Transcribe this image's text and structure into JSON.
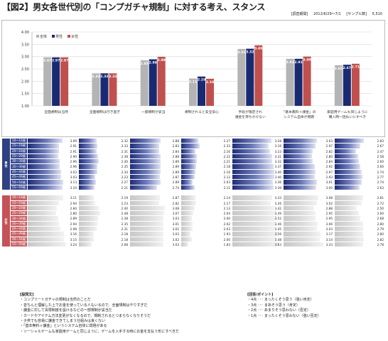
{
  "header": {
    "title": "【図2】男女各世代別の「コンプガチャ規制」に対する考え、スタンス",
    "period_label": "[調査期間]",
    "period": "2012/6/29〜7/1",
    "sample_label": "[サンプル数]",
    "sample": "5,510"
  },
  "colors": {
    "all": "#b4b4b4",
    "male": "#1a2a72",
    "female": "#c0504d"
  },
  "chart_data": {
    "type": "bar",
    "categories": [
      [
        "全面規制は当然"
      ],
      [
        "全面規制は行き過ぎ"
      ],
      [
        "一部規制が妥当"
      ],
      [
        "規制されると安全安心"
      ],
      [
        "手段が限定され",
        "課金を持ちかけない"
      ],
      [
        "「基本無料＋課金」の",
        "システム自体が問題"
      ],
      [
        "家庭用ゲームも同じように",
        "購入時一括払いにすべき"
      ]
    ],
    "series": [
      {
        "name": "全体",
        "values": [
          2.97,
          2.32,
          2.85,
          2.11,
          3.31,
          2.91,
          2.65
        ]
      },
      {
        "name": "男性",
        "values": [
          2.97,
          2.32,
          2.89,
          2.19,
          3.32,
          2.91,
          2.67
        ]
      },
      {
        "name": "女性",
        "values": [
          2.97,
          2.32,
          2.99,
          2.1,
          3.46,
          3.0,
          2.71
        ]
      }
    ],
    "value_labels": [
      [
        "2.97",
        "2.97",
        "2.97"
      ],
      [
        "2.32",
        "2.32",
        "2.32"
      ],
      [
        "2.85",
        "2.89",
        "2.99"
      ],
      [
        "2.11",
        "2.19",
        "2.10"
      ],
      [
        "3.31",
        "3.32",
        "3.46"
      ],
      [
        "2.91",
        "2.91",
        "3.00"
      ],
      [
        "2.65",
        "2.67",
        "2.71"
      ]
    ],
    "ylim": [
      1.0,
      4.0
    ],
    "yticks": [
      "1.00",
      "1.50",
      "2.00",
      "2.50",
      "3.00",
      "3.50",
      "4.00"
    ],
    "legend_position": "top-left",
    "grid": true
  },
  "table": {
    "groups": [
      {
        "label": "男性",
        "rows": [
          {
            "age": "10〜14歳",
            "values": [
              "3.09",
              "2.32",
              "2.88",
              "2.27",
              "3.28",
              "3.03",
              "2.83"
            ]
          },
          {
            "age": "15〜19歳",
            "values": [
              "2.91",
              "2.33",
              "2.83",
              "2.33",
              "3.16",
              "2.97",
              "2.67"
            ]
          },
          {
            "age": "20〜24歳",
            "values": [
              "2.91",
              "2.31",
              "2.84",
              "2.16",
              "3.23",
              "2.82",
              "2.47"
            ]
          },
          {
            "age": "25〜29歳",
            "values": [
              "2.90",
              "2.38",
              "2.88",
              "2.22",
              "3.31",
              "2.80",
              "2.58"
            ]
          },
          {
            "age": "30〜34歳",
            "values": [
              "2.96",
              "2.40",
              "2.89",
              "2.21",
              "3.32",
              "2.84",
              "2.60"
            ]
          },
          {
            "age": "35〜39歳",
            "values": [
              "2.96",
              "2.35",
              "2.89",
              "2.18",
              "3.37",
              "2.92",
              "2.66"
            ]
          },
          {
            "age": "40〜44歳",
            "values": [
              "3.03",
              "2.34",
              "2.89",
              "2.16",
              "3.40",
              "2.97",
              "2.74"
            ]
          },
          {
            "age": "45〜49歳",
            "values": [
              "3.03",
              "2.23",
              "2.87",
              "2.12",
              "3.40",
              "2.93",
              "2.77"
            ]
          },
          {
            "age": "50〜54歳",
            "values": [
              "3.13",
              "2.27",
              "2.89",
              "2.03",
              "3.36",
              "3.01",
              "2.74"
            ]
          },
          {
            "age": "55〜59歳",
            "values": [
              "3.10",
              "2.21",
              "2.74",
              "2.11",
              "3.39",
              "3.00",
              "2.63"
            ]
          }
        ]
      },
      {
        "label": "女性",
        "rows": [
          {
            "age": "10〜14歳",
            "values": [
              "3.11",
              "2.19",
              "2.87",
              "2.14",
              "3.33",
              "3.08",
              "2.81"
            ]
          },
          {
            "age": "15〜19歳",
            "values": [
              "2.94",
              "2.23",
              "2.82",
              "2.17",
              "3.26",
              "3.02",
              "2.72"
            ]
          },
          {
            "age": "20〜24歳",
            "values": [
              "2.84",
              "2.40",
              "3.08",
              "2.13",
              "3.42",
              "2.88",
              "2.50"
            ]
          },
          {
            "age": "25〜29歳",
            "values": [
              "2.80",
              "2.48",
              "3.07",
              "2.04",
              "3.49",
              "2.95",
              "2.60"
            ]
          },
          {
            "age": "30〜34歳",
            "values": [
              "2.89",
              "2.38",
              "3.03",
              "2.00",
              "3.52",
              "2.95",
              "2.68"
            ]
          },
          {
            "age": "35〜39歳",
            "values": [
              "2.94",
              "2.35",
              "3.01",
              "2.02",
              "3.46",
              "3.06",
              "2.80"
            ]
          },
          {
            "age": "40〜44歳",
            "values": [
              "2.98",
              "2.31",
              "3.02",
              "2.03",
              "3.45",
              "3.03",
              "2.79"
            ]
          },
          {
            "age": "45〜49歳",
            "values": [
              "3.16",
              "2.18",
              "3.03",
              "1.93",
              "3.56",
              "3.17",
              "2.80"
            ]
          },
          {
            "age": "50〜54歳",
            "values": [
              "3.15",
              "2.18",
              "3.02",
              "2.00",
              "3.48",
              "3.14",
              "2.82"
            ]
          },
          {
            "age": "55〜59歳",
            "values": [
              "3.24",
              "2.08",
              "3.03",
              "1.83",
              "3.63",
              "3.33",
              "2.78"
            ]
          }
        ]
      }
    ]
  },
  "notes": {
    "question_header": "[設問文]",
    "questions": [
      "・コンプリートガチャの規制は当然のことだ",
      "・音ちんと理解した上でお金を使っている人もいるので、全面規制はやりすぎだ",
      "・課金に対して青限制度を設けるなどの一部規制が妥当だ",
      "・カードやアイテム方法変更がなくなるので、規制されるとつまらなくなりそうだ",
      "・子供でも容易に課金できてしまう仕組みは良くない",
      "・「基本無料＋課金」というシステム自体に問題がある",
      "・ソーシャルゲームも家庭用ゲームと同じように、ゲームを入手する時にお金を支払う形にすべきだ"
    ],
    "answer_header": "[回答/ポイント]",
    "answers": [
      "・4点 ･･･ まったくそう思う（強い肯定）",
      "・3点 ･･･ まあそう思う（肯定）",
      "・2点 ･･･ あまりそう思わない（否定）",
      "・1点 ･･･ まったくそう思わない（強い否定）"
    ]
  }
}
